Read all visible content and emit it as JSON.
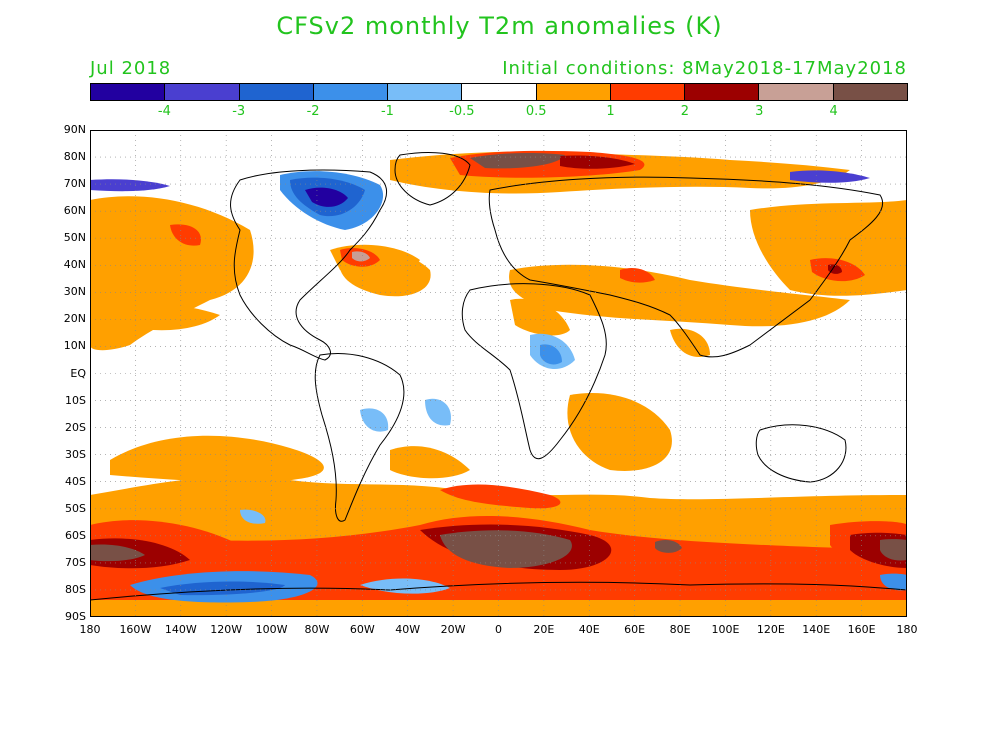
{
  "title": "CFSv2 monthly T2m anomalies (K)",
  "month": "Jul 2018",
  "initial_conditions": "Initial conditions: 8May2018-17May2018",
  "colorbar": {
    "colors": [
      "#2200a0",
      "#4a3fd0",
      "#1f64d0",
      "#3c90ea",
      "#78bdf8",
      "#ffffff",
      "#ffa000",
      "#ff3c00",
      "#9c0000",
      "#c8a096",
      "#785046"
    ],
    "labels": [
      "-4",
      "-3",
      "-2",
      "-1",
      "-0.5",
      "0.5",
      "1",
      "2",
      "3",
      "4"
    ]
  },
  "lat_labels": [
    "90N",
    "80N",
    "70N",
    "60N",
    "50N",
    "40N",
    "30N",
    "20N",
    "10N",
    "EQ",
    "10S",
    "20S",
    "30S",
    "40S",
    "50S",
    "60S",
    "70S",
    "80S",
    "90S"
  ],
  "lon_labels": [
    "180",
    "160W",
    "140W",
    "120W",
    "100W",
    "80W",
    "60W",
    "40W",
    "20W",
    "0",
    "20E",
    "40E",
    "60E",
    "80E",
    "100E",
    "120E",
    "140E",
    "160E",
    "180"
  ]
}
